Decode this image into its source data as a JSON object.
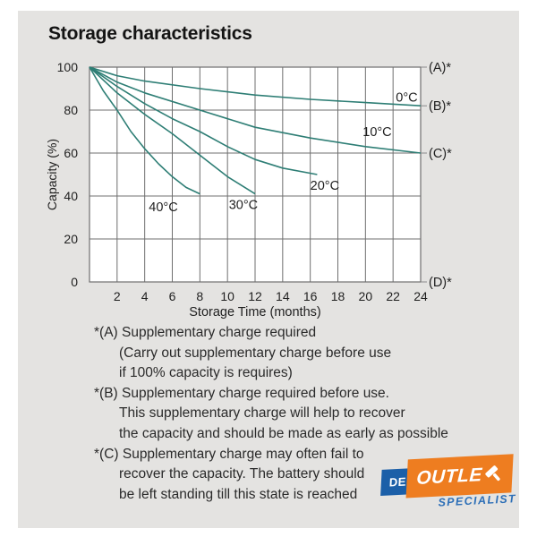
{
  "title": "Storage characteristics",
  "chart_data": {
    "type": "line",
    "title": "Storage characteristics",
    "xlabel": "Storage Time (months)",
    "ylabel": "Capacity (%)",
    "xlim": [
      0,
      24
    ],
    "ylim": [
      0,
      100
    ],
    "x_ticks": [
      2,
      4,
      6,
      8,
      10,
      12,
      14,
      16,
      18,
      20,
      22,
      24
    ],
    "y_ticks": [
      0,
      20,
      40,
      60,
      80,
      100
    ],
    "grid": true,
    "line_color": "#2e7e75",
    "grid_color": "#6f6f6f",
    "series": [
      {
        "name": "0°C",
        "points": [
          [
            0,
            100
          ],
          [
            2,
            96
          ],
          [
            4,
            93.5
          ],
          [
            8,
            90
          ],
          [
            12,
            87
          ],
          [
            16,
            85
          ],
          [
            20,
            83.5
          ],
          [
            24,
            82
          ]
        ],
        "label_pos": [
          22.2,
          84
        ]
      },
      {
        "name": "10°C",
        "points": [
          [
            0,
            100
          ],
          [
            2,
            93
          ],
          [
            4,
            88
          ],
          [
            8,
            80
          ],
          [
            12,
            72
          ],
          [
            16,
            67
          ],
          [
            20,
            63
          ],
          [
            24,
            60
          ]
        ],
        "label_pos": [
          19.8,
          68
        ]
      },
      {
        "name": "20°C",
        "points": [
          [
            0,
            100
          ],
          [
            2,
            91
          ],
          [
            4,
            83
          ],
          [
            6,
            76
          ],
          [
            8,
            70
          ],
          [
            10,
            63
          ],
          [
            12,
            57
          ],
          [
            14,
            53
          ],
          [
            16.5,
            50
          ]
        ],
        "label_pos": [
          16,
          43
        ]
      },
      {
        "name": "30°C",
        "points": [
          [
            0,
            100
          ],
          [
            2,
            88
          ],
          [
            4,
            78
          ],
          [
            6,
            69
          ],
          [
            8,
            59
          ],
          [
            10,
            49
          ],
          [
            12,
            41
          ]
        ],
        "label_pos": [
          10.1,
          34
        ]
      },
      {
        "name": "40°C",
        "points": [
          [
            0,
            100
          ],
          [
            1,
            89
          ],
          [
            2,
            80
          ],
          [
            3,
            70
          ],
          [
            4,
            62
          ],
          [
            5,
            55
          ],
          [
            6,
            49
          ],
          [
            7,
            44
          ],
          [
            8,
            41
          ]
        ],
        "label_pos": [
          4.3,
          33
        ]
      }
    ],
    "right_labels": [
      {
        "text": "(A)*",
        "value": 100
      },
      {
        "text": "(B)*",
        "value": 82
      },
      {
        "text": "(C)*",
        "value": 60
      },
      {
        "text": "(D)*",
        "value": 0
      }
    ]
  },
  "notes": {
    "lines": [
      {
        "text": "*(A) Supplementary charge required"
      },
      {
        "text": "(Carry out supplementary charge before use"
      },
      {
        "text": "if 100% capacity is requires)"
      },
      {
        "text": "*(B) Supplementary charge required before use."
      },
      {
        "text": "This supplementary charge will help to recover"
      },
      {
        "text": "the capacity and should be made as early as possible"
      },
      {
        "text": "*(C) Supplementary charge may often fail to"
      },
      {
        "text": "recover the capacity. The battery should"
      },
      {
        "text": "be left standing till this state is reached"
      }
    ]
  },
  "logo": {
    "de": "DE",
    "outlet": "OUTLE",
    "specialist": "SPECIALIST",
    "orange": "#ee7d20",
    "blue": "#1b5fa8",
    "specialist_blue": "#2d6fb7"
  }
}
